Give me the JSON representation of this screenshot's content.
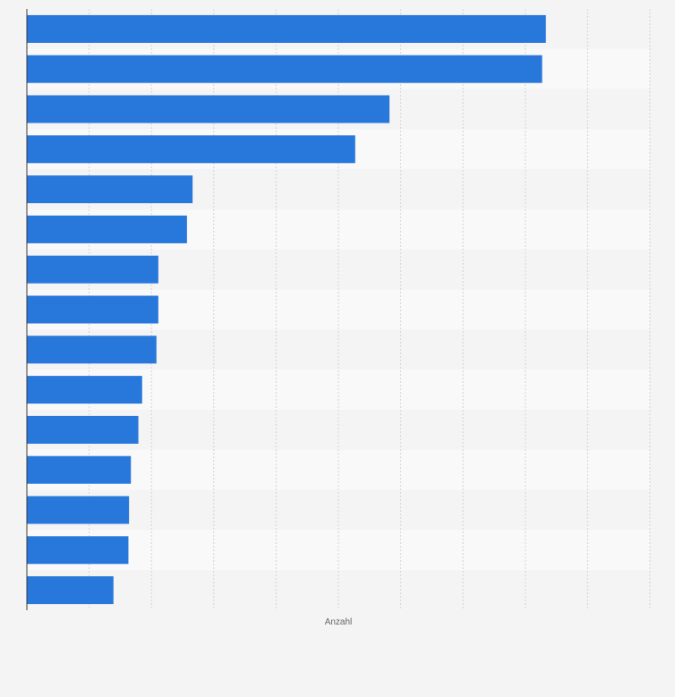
{
  "chart_data": {
    "type": "bar",
    "orientation": "horizontal",
    "categories": [
      "",
      "",
      "",
      "",
      "",
      "",
      "",
      "",
      "",
      "",
      "",
      "",
      "",
      "",
      ""
    ],
    "values": [
      8.33,
      8.27,
      5.82,
      5.27,
      2.66,
      2.57,
      2.11,
      2.11,
      2.08,
      1.85,
      1.79,
      1.67,
      1.64,
      1.63,
      1.39
    ],
    "xlabel": "Anzahl",
    "ylabel": "",
    "xlim": [
      0,
      10
    ],
    "grid": true,
    "colors": {
      "bar": "#2878dc",
      "grid": "#d4d4d8",
      "band_dark": "#f4f4f5",
      "band_light": "#f9f9fa",
      "axis": "#3a3a3a",
      "background": "#f4f4f5"
    }
  }
}
